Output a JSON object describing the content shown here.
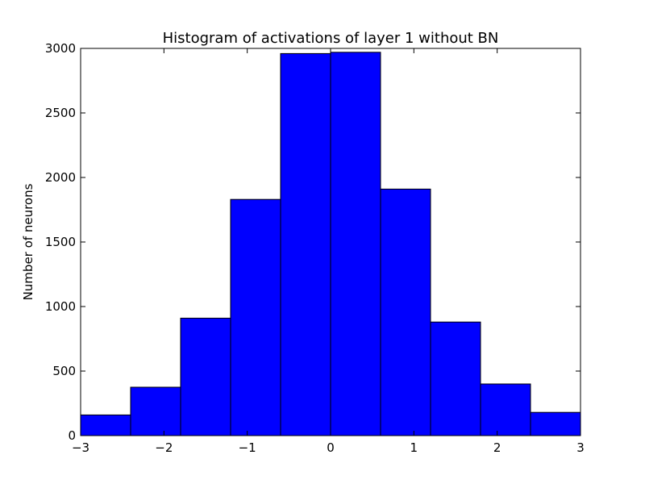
{
  "chart_data": {
    "type": "bar",
    "title": "Histogram of activations of layer 1  without BN",
    "xlabel": "",
    "ylabel": "Number of neurons",
    "xlim": [
      -3,
      3
    ],
    "ylim": [
      0,
      3000
    ],
    "bin_edges": [
      -3,
      -2.4,
      -1.8,
      -1.2,
      -0.6,
      0,
      0.6,
      1.2,
      1.8,
      2.4,
      3
    ],
    "values": [
      160,
      375,
      910,
      1830,
      2960,
      2970,
      1910,
      880,
      400,
      180
    ],
    "x_ticks": [
      -3,
      -2,
      -1,
      0,
      1,
      2,
      3
    ],
    "x_tick_labels": [
      "−3",
      "−2",
      "−1",
      "0",
      "1",
      "2",
      "3"
    ],
    "y_ticks": [
      0,
      500,
      1000,
      1500,
      2000,
      2500,
      3000
    ],
    "y_tick_labels": [
      "0",
      "500",
      "1000",
      "1500",
      "2000",
      "2500",
      "3000"
    ],
    "grid": false,
    "legend": "none",
    "bar_color": "#0000ff",
    "edge_color": "#000000"
  }
}
